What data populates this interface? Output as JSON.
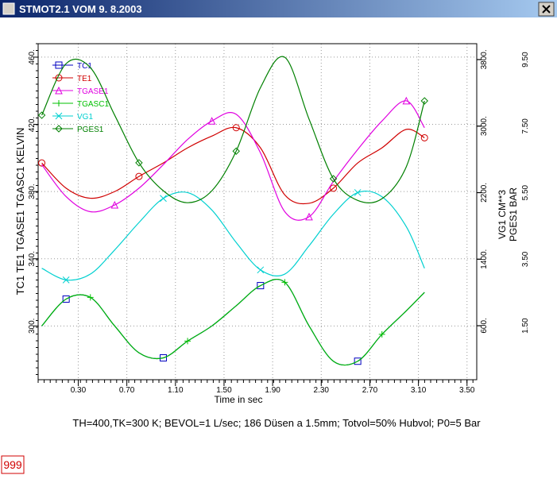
{
  "window": {
    "title": "STMOT2.1 VOM  9. 8.2003"
  },
  "chart_data": {
    "type": "line",
    "x_label": "Time in sec",
    "y_label": "TC1   TE1   TGASE1   TGASC1   KELVIN",
    "y2_label": "VG1  CM**3",
    "y3_label": "PGES1  BAR",
    "caption": "TH=400,TK=300 K; BEVOL=1 L/sec; 186 Düsen a 1.5mm; Totvol=50% Hubvol; P0=5 Bar",
    "x": [
      0,
      0.2,
      0.4,
      0.6,
      0.8,
      1.0,
      1.2,
      1.4,
      1.6,
      1.8,
      2.0,
      2.2,
      2.4,
      2.6,
      2.8,
      3.0,
      3.15
    ],
    "xlim": [
      -0.03,
      3.58
    ],
    "xticks": [
      {
        "value": 0.3,
        "label": "0.30"
      },
      {
        "value": 0.7,
        "label": "0.70"
      },
      {
        "value": 1.1,
        "label": "1.10"
      },
      {
        "value": 1.5,
        "label": "1.50"
      },
      {
        "value": 1.9,
        "label": "1.90"
      },
      {
        "value": 2.3,
        "label": "2.30"
      },
      {
        "value": 2.7,
        "label": "2.70"
      },
      {
        "value": 3.1,
        "label": "3.10"
      },
      {
        "value": 3.5,
        "label": "3.50"
      }
    ],
    "ylim": [
      268,
      468
    ],
    "yticks": [
      {
        "value": 300,
        "label": "300."
      },
      {
        "value": 340,
        "label": "340."
      },
      {
        "value": 380,
        "label": "380."
      },
      {
        "value": 420,
        "label": "420."
      },
      {
        "value": 460,
        "label": "460."
      }
    ],
    "y2lim": [
      -50,
      3990
    ],
    "y2ticks": [
      {
        "value": 600,
        "label": "600."
      },
      {
        "value": 1400,
        "label": "1400."
      },
      {
        "value": 2200,
        "label": "2200."
      },
      {
        "value": 3000,
        "label": "3000."
      },
      {
        "value": 3800,
        "label": "3800."
      }
    ],
    "y3lim": [
      -0.12,
      9.98
    ],
    "y3ticks": [
      {
        "value": 1.5,
        "label": "1.50"
      },
      {
        "value": 3.5,
        "label": "3.50"
      },
      {
        "value": 5.5,
        "label": "5.50"
      },
      {
        "value": 7.5,
        "label": "7.50"
      },
      {
        "value": 9.5,
        "label": "9.50"
      }
    ],
    "grid": true,
    "series": [
      {
        "name": "TC1",
        "color": "#0000c0",
        "marker": "square",
        "values": [
          300,
          316,
          317,
          300,
          284,
          281,
          291,
          300,
          312,
          324,
          326,
          300,
          279,
          279,
          295,
          309,
          320
        ]
      },
      {
        "name": "TE1",
        "color": "#d00000",
        "marker": "circle",
        "values": [
          397,
          382,
          376,
          380,
          389,
          397,
          406,
          413,
          418,
          406,
          378,
          373,
          382,
          397,
          406,
          417,
          412
        ]
      },
      {
        "name": "TGASE1",
        "color": "#e000e0",
        "marker": "triangle",
        "values": [
          396,
          377,
          368,
          372,
          382,
          396,
          411,
          422,
          426,
          403,
          368,
          365,
          386,
          405,
          422,
          434,
          418
        ]
      },
      {
        "name": "TGASC1",
        "color": "#00c000",
        "marker": "plus",
        "values": [
          300,
          316,
          317,
          300,
          284,
          281,
          291,
          300,
          312,
          324,
          326,
          300,
          279,
          279,
          295,
          309,
          320
        ]
      },
      {
        "name": "VG1",
        "color": "#00d0d0",
        "marker": "cross",
        "axis": "y2",
        "values": [
          1290,
          1150,
          1220,
          1510,
          1840,
          2130,
          2200,
          1990,
          1600,
          1270,
          1220,
          1560,
          1940,
          2200,
          2150,
          1790,
          1290
        ]
      },
      {
        "name": "PGES1",
        "color": "#008000",
        "marker": "diamond",
        "axis": "y3",
        "values": [
          7.83,
          9.38,
          9.26,
          7.83,
          6.4,
          5.56,
          5.2,
          5.56,
          6.75,
          8.66,
          9.57,
          7.71,
          5.92,
          5.27,
          5.32,
          6.28,
          8.26
        ]
      }
    ]
  },
  "badge": "999"
}
